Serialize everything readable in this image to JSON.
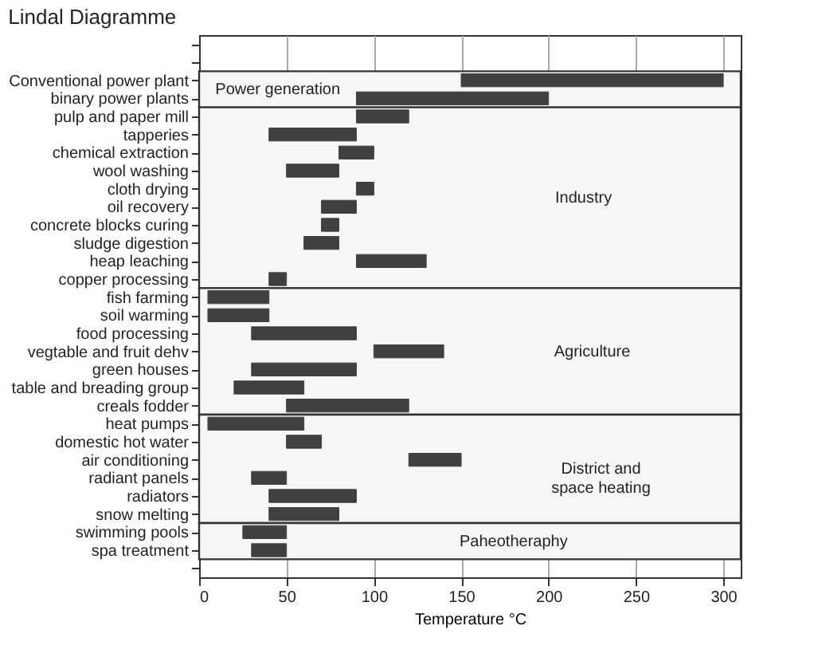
{
  "chart_data": {
    "type": "bar",
    "orientation": "horizontal",
    "title": "Lindal Diagramme",
    "xlabel": "Temperature °C",
    "categories": [
      null,
      null,
      "Conventional power plant",
      "binary power plants",
      "pulp and paper mill",
      "tapperies",
      "chemical extraction",
      "wool washing",
      "cloth drying",
      "oil recovery",
      "concrete blocks curing",
      "sludge digestion",
      "heap leaching",
      "copper processing",
      "fish farming",
      "soil warming",
      "food processing",
      "vegtable and fruit dehv",
      "green houses",
      "table and breading group",
      "creals fodder",
      "heat pumps",
      "domestic hot water",
      "air conditioning",
      "radiant panels",
      "radiators",
      "snow melting",
      "swimming pools",
      "spa treatment",
      null
    ],
    "base": [
      null,
      null,
      150,
      90,
      90,
      40,
      80,
      50,
      90,
      70,
      70,
      60,
      90,
      40,
      5,
      5,
      30,
      100,
      30,
      20,
      50,
      5,
      50,
      120,
      30,
      40,
      40,
      25,
      30,
      null
    ],
    "values": [
      null,
      null,
      150,
      110,
      30,
      50,
      20,
      30,
      10,
      20,
      10,
      20,
      40,
      10,
      35,
      35,
      60,
      40,
      60,
      40,
      70,
      55,
      20,
      30,
      20,
      50,
      40,
      25,
      20,
      null
    ],
    "color": "#404040",
    "xlim": [
      0,
      310
    ],
    "xticks": [
      0,
      50,
      100,
      150,
      200,
      250,
      300
    ],
    "grid": "x",
    "bands": [
      {
        "axis": "y",
        "from": "Conventional power plant",
        "to": "binary power plants",
        "label": "Power generation",
        "color": "#f6f6f6"
      },
      {
        "axis": "y",
        "from": "pulp and paper mill",
        "to": "copper processing",
        "label": "Industry",
        "color": "#f6f6f6"
      },
      {
        "axis": "y",
        "from": "fish farming",
        "to": "creals fodder",
        "label": "Agriculture",
        "color": "#f6f6f6"
      },
      {
        "axis": "y",
        "from": "heat pumps",
        "to": "snow melting",
        "label": "District and\nspace heating",
        "color": "#f6f6f6"
      },
      {
        "axis": "y",
        "from": "swimming pools",
        "to": "spa treatment",
        "label": "Paheotheraphy",
        "color": "#f6f6f6"
      }
    ]
  }
}
